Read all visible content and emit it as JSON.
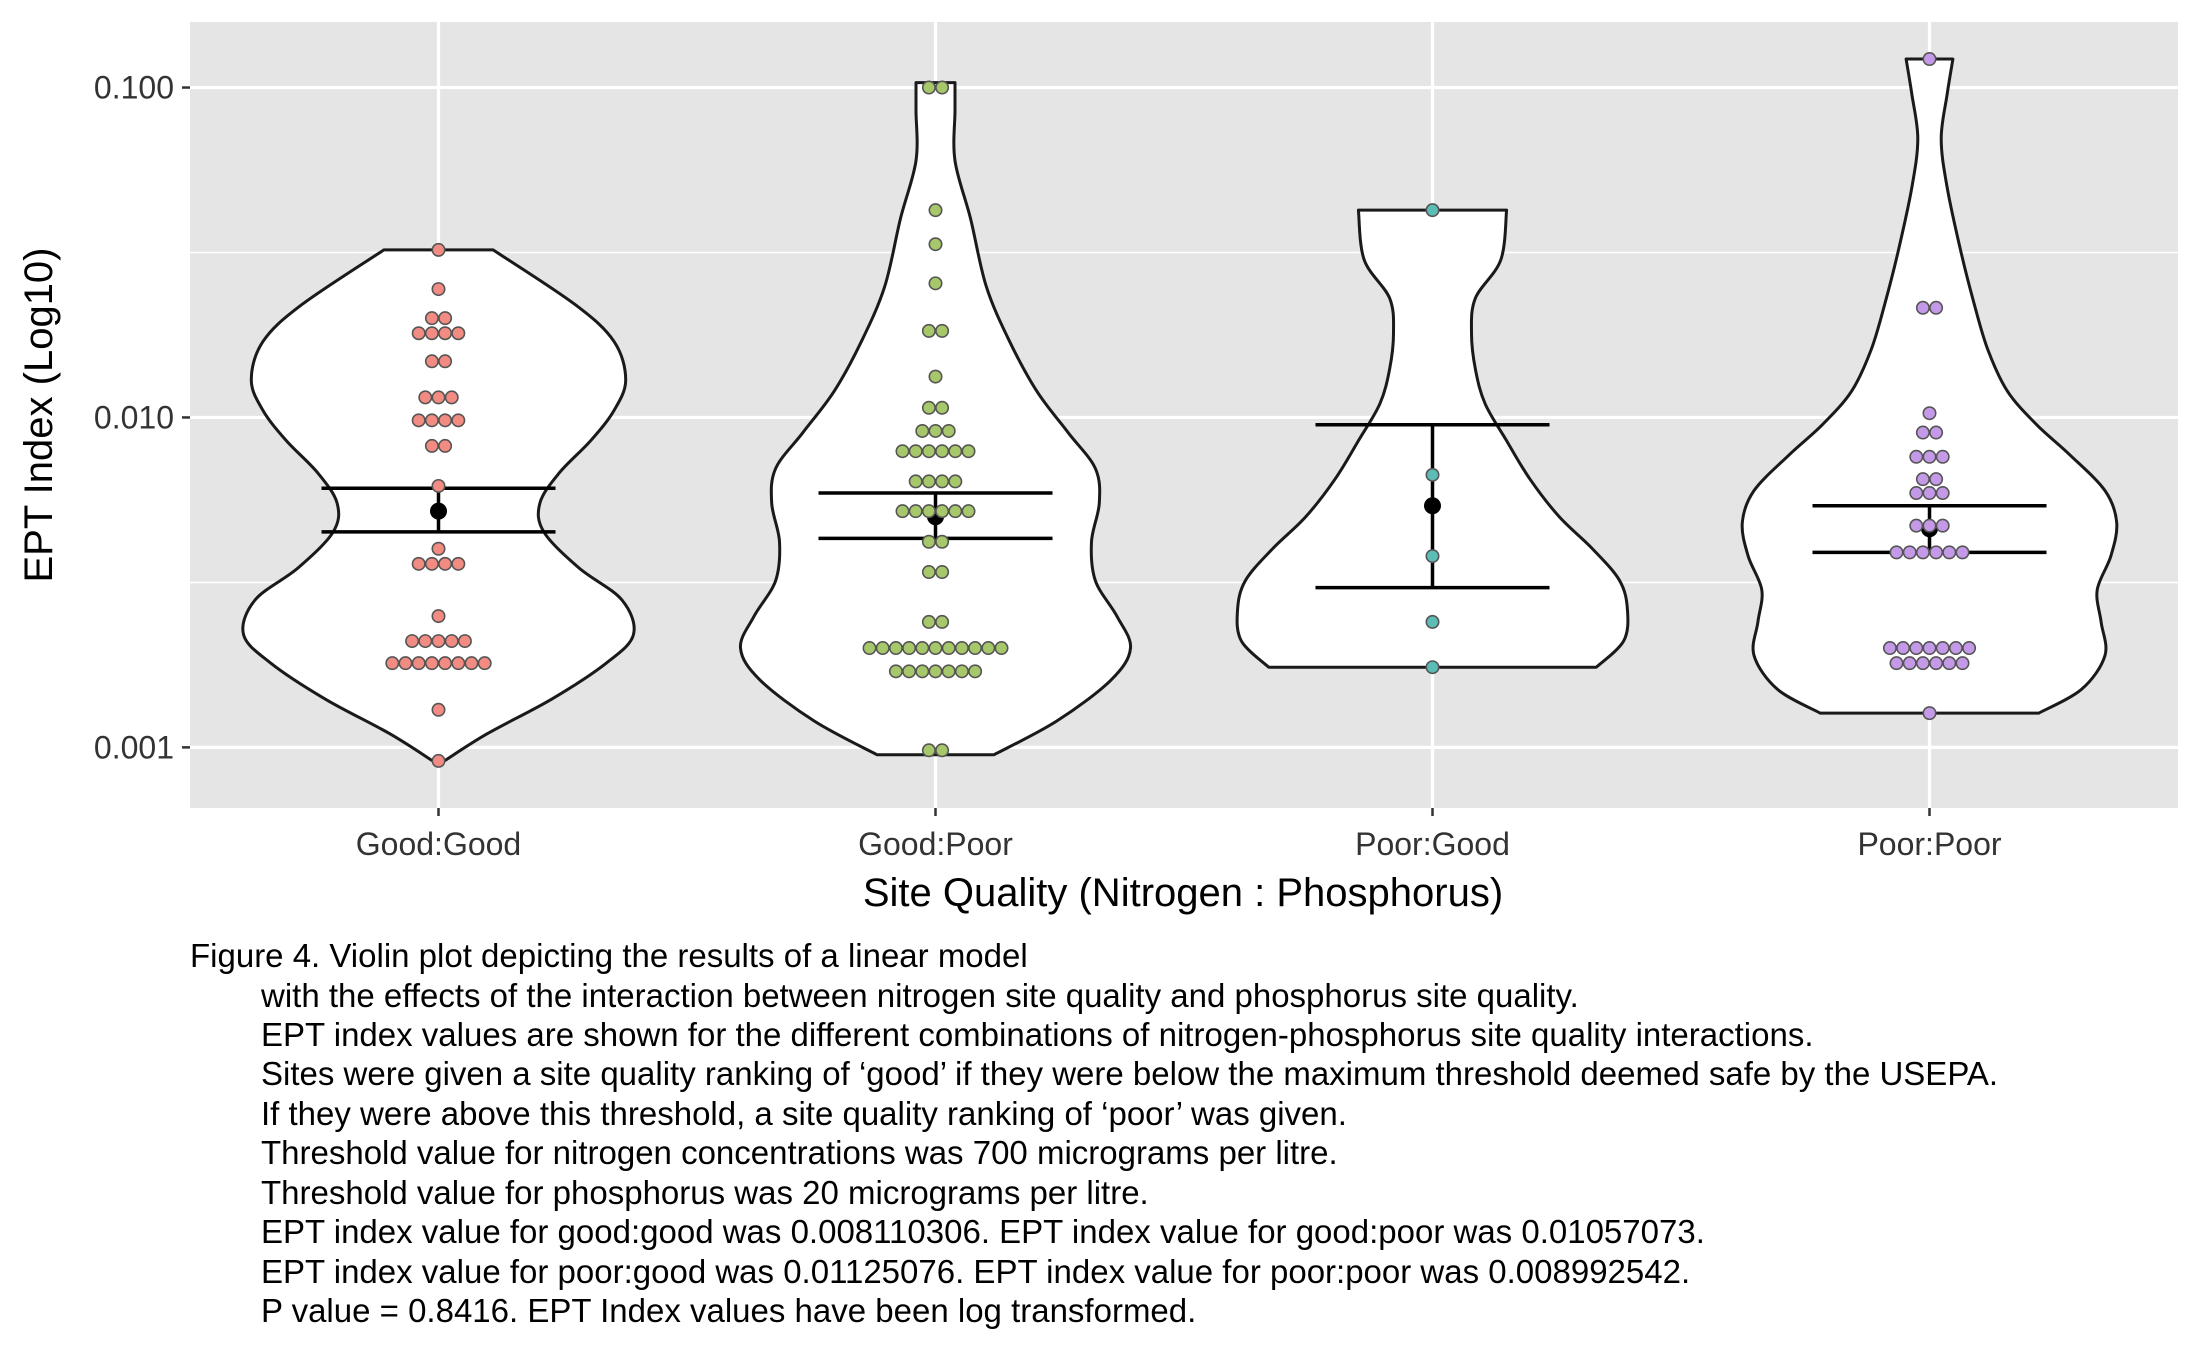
{
  "chart_data": {
    "type": "violin",
    "title": "",
    "xlabel": "Site Quality (Nitrogen : Phosphorus)",
    "ylabel": "EPT Index (Log10)",
    "y_scale": "log10",
    "ylim": [
      0.000655,
      0.158
    ],
    "y_ticks": [
      0.001,
      0.01,
      0.1
    ],
    "y_tick_labels": [
      "0.001",
      "0.010",
      "0.100"
    ],
    "grid": true,
    "legend": "none",
    "categories": [
      "Good:Good",
      "Good:Poor",
      "Poor:Good",
      "Poor:Poor"
    ],
    "colors": {
      "panel_bg": "#e5e5e5",
      "grid": "#ffffff",
      "violin_fill": "#ffffff",
      "violin_stroke": "#1a1a1a",
      "mean": "#000000",
      "text": "#333333"
    },
    "series": [
      {
        "category": "Good:Good",
        "color": "#f28b82",
        "mean": 0.0052,
        "ci": [
          0.0045,
          0.0061
        ],
        "violin_range": [
          0.00091,
          0.0322
        ],
        "violin_shape": [
          [
            0.00091,
            0.03
          ],
          [
            0.0011,
            0.25
          ],
          [
            0.0014,
            0.58
          ],
          [
            0.0018,
            0.86
          ],
          [
            0.0022,
            1.0
          ],
          [
            0.0028,
            0.94
          ],
          [
            0.0035,
            0.72
          ],
          [
            0.0045,
            0.54
          ],
          [
            0.0055,
            0.52
          ],
          [
            0.0068,
            0.62
          ],
          [
            0.0085,
            0.78
          ],
          [
            0.0105,
            0.9
          ],
          [
            0.013,
            0.96
          ],
          [
            0.017,
            0.9
          ],
          [
            0.022,
            0.7
          ],
          [
            0.0322,
            0.28
          ]
        ],
        "points": [
          0.00091,
          0.0013,
          0.0018,
          0.0018,
          0.0018,
          0.0018,
          0.0018,
          0.0018,
          0.0018,
          0.0018,
          0.0021,
          0.0021,
          0.0021,
          0.0021,
          0.0021,
          0.0025,
          0.0036,
          0.0036,
          0.0036,
          0.0036,
          0.004,
          0.0062,
          0.0082,
          0.0082,
          0.0098,
          0.0098,
          0.0098,
          0.0098,
          0.0115,
          0.0115,
          0.0115,
          0.0148,
          0.0148,
          0.018,
          0.018,
          0.018,
          0.018,
          0.02,
          0.02,
          0.0245,
          0.0322
        ]
      },
      {
        "category": "Good:Poor",
        "color": "#a6c76a",
        "mean": 0.005,
        "ci": [
          0.0043,
          0.0059
        ],
        "violin_range": [
          0.00095,
          0.1035
        ],
        "violin_shape": [
          [
            0.00095,
            0.3
          ],
          [
            0.0012,
            0.62
          ],
          [
            0.0016,
            0.9
          ],
          [
            0.002,
            1.0
          ],
          [
            0.0025,
            0.93
          ],
          [
            0.0032,
            0.82
          ],
          [
            0.0042,
            0.8
          ],
          [
            0.0055,
            0.84
          ],
          [
            0.007,
            0.82
          ],
          [
            0.009,
            0.68
          ],
          [
            0.012,
            0.52
          ],
          [
            0.017,
            0.38
          ],
          [
            0.025,
            0.26
          ],
          [
            0.04,
            0.18
          ],
          [
            0.06,
            0.1
          ],
          [
            0.085,
            0.1
          ],
          [
            0.1035,
            0.1
          ]
        ],
        "points": [
          0.00098,
          0.00098,
          0.0017,
          0.0017,
          0.0017,
          0.0017,
          0.0017,
          0.0017,
          0.0017,
          0.002,
          0.002,
          0.002,
          0.002,
          0.002,
          0.002,
          0.002,
          0.002,
          0.002,
          0.002,
          0.002,
          0.0024,
          0.0024,
          0.0034,
          0.0034,
          0.0042,
          0.0042,
          0.0052,
          0.0052,
          0.0052,
          0.0052,
          0.0052,
          0.0052,
          0.0064,
          0.0064,
          0.0064,
          0.0064,
          0.0079,
          0.0079,
          0.0079,
          0.0079,
          0.0079,
          0.0079,
          0.0091,
          0.0091,
          0.0091,
          0.0107,
          0.0107,
          0.0133,
          0.0183,
          0.0183,
          0.0255,
          0.0335,
          0.0425,
          0.1,
          0.1
        ]
      },
      {
        "category": "Poor:Good",
        "color": "#5bbdb5",
        "mean": 0.0054,
        "ci": [
          0.00305,
          0.0095
        ],
        "violin_range": [
          0.00175,
          0.0425
        ],
        "violin_shape": [
          [
            0.00175,
            0.84
          ],
          [
            0.0021,
            0.98
          ],
          [
            0.0026,
            1.0
          ],
          [
            0.0032,
            0.96
          ],
          [
            0.004,
            0.82
          ],
          [
            0.005,
            0.65
          ],
          [
            0.0065,
            0.5
          ],
          [
            0.0085,
            0.38
          ],
          [
            0.011,
            0.27
          ],
          [
            0.014,
            0.22
          ],
          [
            0.018,
            0.2
          ],
          [
            0.023,
            0.22
          ],
          [
            0.03,
            0.35
          ],
          [
            0.0425,
            0.38
          ]
        ],
        "points": [
          0.00175,
          0.0024,
          0.0038,
          0.0067,
          0.0425
        ]
      },
      {
        "category": "Poor:Poor",
        "color": "#c49ae8",
        "mean": 0.0046,
        "ci": [
          0.0039,
          0.0054
        ],
        "violin_range": [
          0.00127,
          0.122
        ],
        "violin_shape": [
          [
            0.00127,
            0.56
          ],
          [
            0.0015,
            0.78
          ],
          [
            0.0019,
            0.9
          ],
          [
            0.0024,
            0.88
          ],
          [
            0.003,
            0.86
          ],
          [
            0.0038,
            0.93
          ],
          [
            0.0048,
            0.96
          ],
          [
            0.006,
            0.9
          ],
          [
            0.0077,
            0.72
          ],
          [
            0.0095,
            0.55
          ],
          [
            0.012,
            0.4
          ],
          [
            0.016,
            0.3
          ],
          [
            0.022,
            0.23
          ],
          [
            0.032,
            0.16
          ],
          [
            0.05,
            0.09
          ],
          [
            0.07,
            0.06
          ],
          [
            0.095,
            0.09
          ],
          [
            0.122,
            0.12
          ]
        ],
        "points": [
          0.00127,
          0.0018,
          0.0018,
          0.0018,
          0.0018,
          0.0018,
          0.0018,
          0.002,
          0.002,
          0.002,
          0.002,
          0.002,
          0.002,
          0.002,
          0.0039,
          0.0039,
          0.0039,
          0.0039,
          0.0039,
          0.0039,
          0.0047,
          0.0047,
          0.0047,
          0.0059,
          0.0059,
          0.0059,
          0.0065,
          0.0065,
          0.0076,
          0.0076,
          0.0076,
          0.009,
          0.009,
          0.0103,
          0.0215,
          0.0215,
          0.122
        ]
      }
    ]
  },
  "caption": {
    "lines": [
      "Figure 4. Violin plot depicting the results of a linear model",
      "with the effects of the interaction between nitrogen site quality and phosphorus site quality.",
      "EPT index values are shown for the different combinations of nitrogen-phosphorus site quality interactions.",
      "Sites were given a site quality ranking of ‘good’ if they were below the maximum threshold deemed safe by the USEPA.",
      "If they were above this threshold, a site quality ranking of ‘poor’ was given.",
      "Threshold value for nitrogen concentrations was 700 micrograms per litre.",
      "Threshold value for phosphorus was 20 micrograms per litre.",
      "EPT index value for good:good was 0.008110306. EPT index value for good:poor was 0.01057073.",
      "EPT index value for poor:good was 0.01125076. EPT index value for poor:poor was 0.008992542.",
      "P value = 0.8416. EPT Index values have been log transformed."
    ]
  }
}
